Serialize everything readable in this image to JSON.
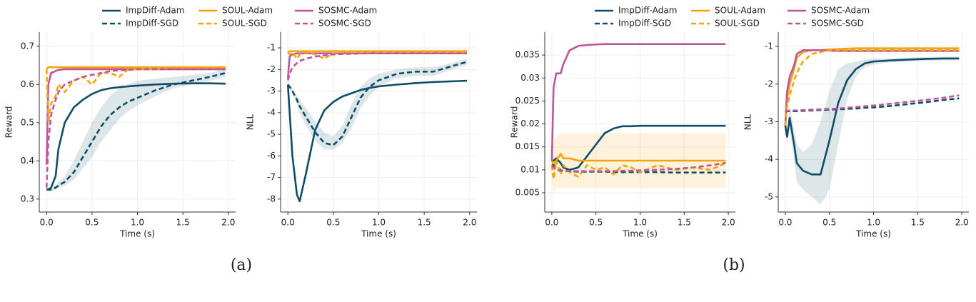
{
  "chart_data": [
    {
      "type": "line",
      "xlabel": "Time (s)",
      "ylabel": "Reward",
      "legend": "top",
      "caption": "(a)",
      "grid": true,
      "x": [
        0,
        0.02,
        0.05,
        0.1,
        0.13,
        0.2,
        0.3,
        0.4,
        0.5,
        0.6,
        0.7,
        0.8,
        0.9,
        1.0,
        1.2,
        1.4,
        1.6,
        1.8,
        1.97
      ],
      "xlim": [
        -0.08,
        2.08
      ],
      "xticks": [
        {
          "value": 0,
          "label": "0.0"
        },
        0.5,
        {
          "value": 1,
          "label": "1.0"
        },
        1.5,
        {
          "value": 2,
          "label": "2.0"
        }
      ],
      "ylim": [
        0.266,
        0.737
      ],
      "yticks": [
        0.3,
        0.4,
        0.5,
        0.6,
        0.7
      ],
      "series": [
        {
          "name": "ImpDiff-Adam",
          "color": "#0f4c66",
          "dash": false,
          "values": [
            0.325,
            0.325,
            0.33,
            0.36,
            0.43,
            0.5,
            0.54,
            0.56,
            0.575,
            0.585,
            0.59,
            0.593,
            0.595,
            0.597,
            0.6,
            0.602,
            0.603,
            0.603,
            0.602
          ]
        },
        {
          "name": "SOUL-Adam",
          "color": "#f5a30a",
          "dash": false,
          "values": [
            0.64,
            0.645,
            0.645,
            0.645,
            0.645,
            0.645,
            0.645,
            0.645,
            0.645,
            0.645,
            0.645,
            0.645,
            0.645,
            0.645,
            0.645,
            0.645,
            0.645,
            0.645,
            0.645
          ]
        },
        {
          "name": "SOSMC-Adam",
          "color": "#c0559a",
          "dash": false,
          "values": [
            0.39,
            0.6,
            0.63,
            0.635,
            0.638,
            0.64,
            0.64,
            0.64,
            0.64,
            0.64,
            0.64,
            0.64,
            0.64,
            0.64,
            0.64,
            0.64,
            0.64,
            0.64,
            0.64
          ]
        },
        {
          "name": "ImpDiff-SGD",
          "color": "#0f4c66",
          "dash": true,
          "values": [
            0.325,
            0.325,
            0.325,
            0.33,
            0.335,
            0.345,
            0.37,
            0.41,
            0.45,
            0.49,
            0.52,
            0.54,
            0.555,
            0.565,
            0.585,
            0.6,
            0.61,
            0.62,
            0.63
          ],
          "lower": [
            0.32,
            0.32,
            0.32,
            0.325,
            0.33,
            0.335,
            0.35,
            0.38,
            0.41,
            0.45,
            0.48,
            0.51,
            0.53,
            0.545,
            0.57,
            0.59,
            0.6,
            0.61,
            0.62
          ],
          "upper": [
            0.33,
            0.33,
            0.33,
            0.335,
            0.345,
            0.36,
            0.4,
            0.45,
            0.5,
            0.54,
            0.57,
            0.59,
            0.6,
            0.61,
            0.615,
            0.62,
            0.625,
            0.63,
            0.64
          ]
        },
        {
          "name": "SOUL-SGD",
          "color": "#f5a30a",
          "dash": true,
          "values": [
            0.64,
            0.5,
            0.55,
            0.57,
            0.6,
            0.58,
            0.61,
            0.62,
            0.6,
            0.63,
            0.63,
            0.62,
            0.64,
            0.64,
            0.64,
            0.645,
            0.645,
            0.645,
            0.645
          ]
        },
        {
          "name": "SOSMC-SGD",
          "color": "#c0559a",
          "dash": true,
          "values": [
            0.33,
            0.45,
            0.52,
            0.56,
            0.58,
            0.6,
            0.61,
            0.62,
            0.625,
            0.63,
            0.635,
            0.637,
            0.638,
            0.64,
            0.64,
            0.64,
            0.64,
            0.64,
            0.64
          ]
        }
      ]
    },
    {
      "type": "line",
      "xlabel": "Time (s)",
      "ylabel": "NLL",
      "grid": true,
      "x": [
        0,
        0.02,
        0.05,
        0.1,
        0.13,
        0.2,
        0.3,
        0.4,
        0.5,
        0.6,
        0.7,
        0.8,
        0.9,
        1.0,
        1.2,
        1.4,
        1.6,
        1.8,
        1.97
      ],
      "xlim": [
        -0.08,
        2.08
      ],
      "xticks": [
        {
          "value": 0,
          "label": "0.0"
        },
        0.5,
        {
          "value": 1,
          "label": "1.0"
        },
        1.5,
        {
          "value": 2,
          "label": "2.0"
        }
      ],
      "ylim": [
        -8.6,
        -0.27
      ],
      "yticks": [
        -1,
        -2,
        -3,
        -4,
        -5,
        -6,
        -7,
        -8
      ],
      "series": [
        {
          "name": "ImpDiff-Adam",
          "color": "#0f4c66",
          "dash": false,
          "values": [
            -2.7,
            -4,
            -6,
            -7.8,
            -8.1,
            -6.8,
            -4.8,
            -3.9,
            -3.5,
            -3.25,
            -3.1,
            -2.95,
            -2.85,
            -2.78,
            -2.7,
            -2.63,
            -2.58,
            -2.55,
            -2.52
          ]
        },
        {
          "name": "SOUL-Adam",
          "color": "#f5a30a",
          "dash": false,
          "values": [
            -1.2,
            -1.15,
            -1.15,
            -1.15,
            -1.15,
            -1.15,
            -1.15,
            -1.15,
            -1.15,
            -1.15,
            -1.15,
            -1.15,
            -1.15,
            -1.15,
            -1.15,
            -1.15,
            -1.15,
            -1.15,
            -1.15
          ]
        },
        {
          "name": "SOSMC-Adam",
          "color": "#c0559a",
          "dash": false,
          "values": [
            -2.4,
            -1.4,
            -1.3,
            -1.25,
            -1.25,
            -1.25,
            -1.25,
            -1.25,
            -1.25,
            -1.25,
            -1.25,
            -1.25,
            -1.25,
            -1.25,
            -1.25,
            -1.25,
            -1.25,
            -1.25,
            -1.25
          ]
        },
        {
          "name": "ImpDiff-SGD",
          "color": "#0f4c66",
          "dash": true,
          "values": [
            -2.7,
            -2.8,
            -3.0,
            -3.4,
            -3.7,
            -4.2,
            -4.9,
            -5.4,
            -5.5,
            -5.1,
            -4.2,
            -3.3,
            -2.8,
            -2.5,
            -2.2,
            -2.1,
            -2.1,
            -1.85,
            -1.65
          ],
          "lower": [
            -2.8,
            -2.9,
            -3.1,
            -3.6,
            -4.0,
            -4.6,
            -5.3,
            -5.7,
            -5.7,
            -5.4,
            -4.7,
            -3.8,
            -3.2,
            -2.8,
            -2.4,
            -2.3,
            -2.3,
            -2.0,
            -1.8
          ],
          "upper": [
            -2.6,
            -2.7,
            -2.9,
            -3.2,
            -3.4,
            -3.8,
            -4.4,
            -4.9,
            -5.1,
            -4.6,
            -3.6,
            -2.8,
            -2.4,
            -2.2,
            -2.0,
            -1.9,
            -1.9,
            -1.7,
            -1.5
          ]
        },
        {
          "name": "SOUL-SGD",
          "color": "#f5a30a",
          "dash": true,
          "values": [
            -1.2,
            -1.3,
            -1.2,
            -1.5,
            -1.3,
            -1.2,
            -1.3,
            -1.5,
            -1.25,
            -1.2,
            -1.2,
            -1.2,
            -1.2,
            -1.2,
            -1.2,
            -1.2,
            -1.2,
            -1.2,
            -1.2
          ]
        },
        {
          "name": "SOSMC-SGD",
          "color": "#c0559a",
          "dash": true,
          "values": [
            -2.5,
            -2.2,
            -1.9,
            -1.7,
            -1.6,
            -1.5,
            -1.4,
            -1.35,
            -1.3,
            -1.28,
            -1.27,
            -1.26,
            -1.25,
            -1.25,
            -1.25,
            -1.25,
            -1.25,
            -1.25,
            -1.25
          ]
        }
      ]
    },
    {
      "type": "line",
      "xlabel": "Time (s)",
      "ylabel": "Reward",
      "legend": "top",
      "caption": "(b)",
      "grid": true,
      "x": [
        0,
        0.02,
        0.05,
        0.1,
        0.13,
        0.2,
        0.3,
        0.4,
        0.5,
        0.6,
        0.7,
        0.8,
        0.9,
        1.0,
        1.2,
        1.4,
        1.6,
        1.8,
        1.97
      ],
      "xlim": [
        -0.08,
        2.08
      ],
      "xticks": [
        {
          "value": 0,
          "label": "0.0"
        },
        0.5,
        {
          "value": 1,
          "label": "1.0"
        },
        1.5,
        {
          "value": 2,
          "label": "2.0"
        }
      ],
      "ylim": [
        0.0008,
        0.04
      ],
      "yticks": [
        0.005,
        0.01,
        0.015,
        0.02,
        0.025,
        0.03,
        0.035
      ],
      "series": [
        {
          "name": "ImpDiff-Adam",
          "color": "#0f4c66",
          "dash": false,
          "values": [
            0.012,
            0.012,
            0.0125,
            0.0115,
            0.0105,
            0.01,
            0.0105,
            0.013,
            0.0155,
            0.018,
            0.019,
            0.0195,
            0.0195,
            0.0196,
            0.0196,
            0.0196,
            0.0196,
            0.0196,
            0.0196
          ]
        },
        {
          "name": "SOUL-Adam",
          "color": "#f5a30a",
          "dash": false,
          "values": [
            0.012,
            0.011,
            0.012,
            0.0135,
            0.0125,
            0.0125,
            0.012,
            0.012,
            0.012,
            0.012,
            0.012,
            0.012,
            0.012,
            0.012,
            0.012,
            0.012,
            0.012,
            0.012,
            0.012
          ]
        },
        {
          "name": "SOSMC-Adam",
          "color": "#c0559a",
          "dash": false,
          "values": [
            0.012,
            0.028,
            0.031,
            0.031,
            0.033,
            0.036,
            0.037,
            0.0372,
            0.0373,
            0.0374,
            0.0374,
            0.0374,
            0.0374,
            0.0374,
            0.0374,
            0.0374,
            0.0374,
            0.0374,
            0.0374
          ]
        },
        {
          "name": "ImpDiff-SGD",
          "color": "#0f4c66",
          "dash": true,
          "values": [
            0.011,
            0.011,
            0.0105,
            0.01,
            0.0098,
            0.0097,
            0.0096,
            0.0096,
            0.0096,
            0.0096,
            0.0095,
            0.0095,
            0.0095,
            0.0095,
            0.0095,
            0.0094,
            0.0094,
            0.0094,
            0.0094
          ]
        },
        {
          "name": "SOUL-SGD",
          "color": "#f5a30a",
          "dash": true,
          "values": [
            0.011,
            0.008,
            0.012,
            0.009,
            0.011,
            0.0095,
            0.0085,
            0.011,
            0.01,
            0.0105,
            0.009,
            0.011,
            0.0105,
            0.0095,
            0.011,
            0.01,
            0.0105,
            0.01,
            0.0115
          ],
          "lower": [
            0.008,
            0.005,
            0.006,
            0.006,
            0.006,
            0.006,
            0.006,
            0.006,
            0.006,
            0.006,
            0.006,
            0.006,
            0.006,
            0.006,
            0.006,
            0.006,
            0.006,
            0.006,
            0.006
          ],
          "upper": [
            0.014,
            0.016,
            0.017,
            0.018,
            0.018,
            0.018,
            0.018,
            0.018,
            0.018,
            0.018,
            0.018,
            0.018,
            0.018,
            0.018,
            0.018,
            0.018,
            0.018,
            0.018,
            0.018
          ]
        },
        {
          "name": "SOSMC-SGD",
          "color": "#c0559a",
          "dash": true,
          "values": [
            0.011,
            0.0105,
            0.01,
            0.0098,
            0.0097,
            0.0097,
            0.0097,
            0.0097,
            0.0097,
            0.0097,
            0.0097,
            0.0098,
            0.0098,
            0.0099,
            0.01,
            0.0102,
            0.0105,
            0.011,
            0.0115
          ]
        }
      ]
    },
    {
      "type": "line",
      "xlabel": "Time (s)",
      "ylabel": "NLL",
      "grid": true,
      "x": [
        0,
        0.02,
        0.05,
        0.1,
        0.13,
        0.2,
        0.3,
        0.4,
        0.5,
        0.6,
        0.7,
        0.8,
        0.9,
        1.0,
        1.2,
        1.4,
        1.6,
        1.8,
        1.97
      ],
      "xlim": [
        -0.08,
        2.08
      ],
      "xticks": [
        {
          "value": 0,
          "label": "0.0"
        },
        0.5,
        {
          "value": 1,
          "label": "1.0"
        },
        1.5,
        {
          "value": 2,
          "label": "2.0"
        }
      ],
      "ylim": [
        -5.4,
        -0.62
      ],
      "yticks": [
        -1,
        -2,
        -3,
        -4,
        -5
      ],
      "series": [
        {
          "name": "ImpDiff-Adam",
          "color": "#0f4c66",
          "dash": false,
          "values": [
            -3.1,
            -3.4,
            -2.9,
            -3.6,
            -4.1,
            -4.3,
            -4.4,
            -4.4,
            -3.5,
            -2.5,
            -1.9,
            -1.6,
            -1.45,
            -1.4,
            -1.37,
            -1.35,
            -1.33,
            -1.32,
            -1.32
          ],
          "lower": [
            -3.2,
            -3.6,
            -3.2,
            -4.0,
            -4.6,
            -4.8,
            -5.0,
            -5.2,
            -4.8,
            -3.6,
            -2.4,
            -1.8,
            -1.55,
            -1.48,
            -1.42,
            -1.4,
            -1.38,
            -1.37,
            -1.37
          ],
          "upper": [
            -3.0,
            -3.2,
            -2.6,
            -3.2,
            -3.6,
            -3.8,
            -3.6,
            -3.0,
            -2.2,
            -1.6,
            -1.45,
            -1.4,
            -1.35,
            -1.32,
            -1.32,
            -1.3,
            -1.28,
            -1.27,
            -1.27
          ]
        },
        {
          "name": "SOUL-Adam",
          "color": "#f5a30a",
          "dash": false,
          "values": [
            -3.1,
            -2.4,
            -2,
            -1.6,
            -1.3,
            -1.15,
            -1.1,
            -1.1,
            -1.08,
            -1.07,
            -1.06,
            -1.05,
            -1.05,
            -1.05,
            -1.05,
            -1.05,
            -1.05,
            -1.05,
            -1.05
          ]
        },
        {
          "name": "SOSMC-Adam",
          "color": "#c0559a",
          "dash": false,
          "values": [
            -3.1,
            -2.2,
            -1.8,
            -1.5,
            -1.2,
            -1.1,
            -1.1,
            -1.1,
            -1.11,
            -1.12,
            -1.12,
            -1.12,
            -1.12,
            -1.12,
            -1.12,
            -1.12,
            -1.12,
            -1.12,
            -1.12
          ]
        },
        {
          "name": "ImpDiff-SGD",
          "color": "#0f4c66",
          "dash": true,
          "values": [
            -2.75,
            -2.72,
            -2.72,
            -2.72,
            -2.72,
            -2.71,
            -2.7,
            -2.69,
            -2.68,
            -2.67,
            -2.66,
            -2.65,
            -2.63,
            -2.62,
            -2.58,
            -2.53,
            -2.48,
            -2.42,
            -2.38
          ]
        },
        {
          "name": "SOUL-SGD",
          "color": "#f5a30a",
          "dash": true,
          "values": [
            -3.1,
            -2.6,
            -2.3,
            -1.9,
            -1.7,
            -1.4,
            -1.2,
            -1.15,
            -1.1,
            -1.1,
            -1.1,
            -1.1,
            -1.1,
            -1.1,
            -1.1,
            -1.1,
            -1.1,
            -1.1,
            -1.1
          ]
        },
        {
          "name": "SOSMC-SGD",
          "color": "#c0559a",
          "dash": true,
          "values": [
            -2.75,
            -2.72,
            -2.7,
            -2.7,
            -2.7,
            -2.69,
            -2.68,
            -2.67,
            -2.66,
            -2.65,
            -2.63,
            -2.61,
            -2.59,
            -2.57,
            -2.52,
            -2.47,
            -2.42,
            -2.36,
            -2.3
          ]
        }
      ]
    }
  ]
}
